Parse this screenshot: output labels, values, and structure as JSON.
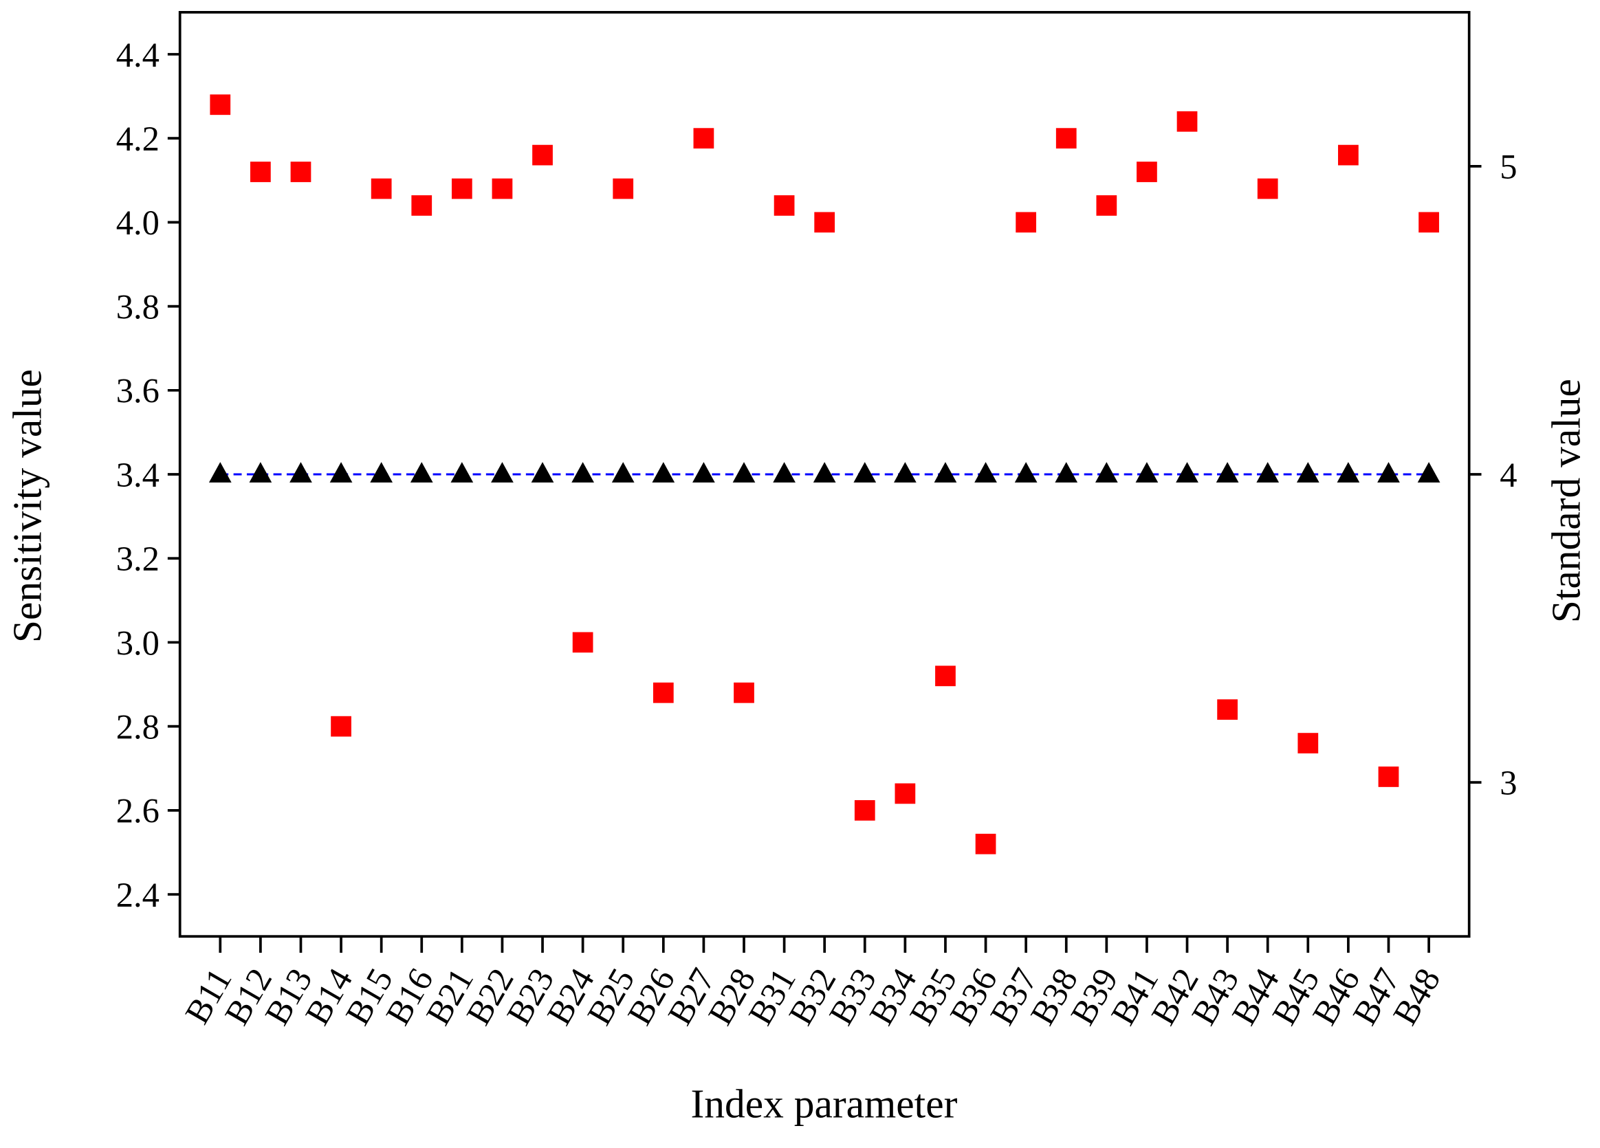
{
  "chart_data": {
    "type": "scatter",
    "x_label": "Index parameter",
    "y_label": "Sensitivity value",
    "y2_label": "Standard value",
    "categories": [
      "B11",
      "B12",
      "B13",
      "B14",
      "B15",
      "B16",
      "B21",
      "B22",
      "B23",
      "B24",
      "B25",
      "B26",
      "B27",
      "B28",
      "B31",
      "B32",
      "B33",
      "B34",
      "B35",
      "B36",
      "B37",
      "B38",
      "B39",
      "B41",
      "B42",
      "B43",
      "B44",
      "B45",
      "B46",
      "B47",
      "B48"
    ],
    "series": [
      {
        "color": "#ff0000",
        "marker": "square",
        "values": [
          4.28,
          4.12,
          4.12,
          2.8,
          4.08,
          4.04,
          4.08,
          4.08,
          4.16,
          3.0,
          4.08,
          2.88,
          4.2,
          2.88,
          4.04,
          4.0,
          2.6,
          2.64,
          2.92,
          2.52,
          4.0,
          4.2,
          4.04,
          4.12,
          4.24,
          2.84,
          4.08,
          2.76,
          4.16,
          2.68,
          4.0
        ]
      },
      {
        "color": "#000000",
        "marker": "triangle",
        "line_color": "#0000ff",
        "line_style": "dashed",
        "axis": "y2",
        "values": [
          4,
          4,
          4,
          4,
          4,
          4,
          4,
          4,
          4,
          4,
          4,
          4,
          4,
          4,
          4,
          4,
          4,
          4,
          4,
          4,
          4,
          4,
          4,
          4,
          4,
          4,
          4,
          4,
          4,
          4,
          4
        ]
      }
    ],
    "ylim": [
      2.3,
      4.5
    ],
    "yticks": [
      2.4,
      2.6,
      2.8,
      {
        "value": 3,
        "label": "3.0"
      },
      3.2,
      3.4,
      3.6,
      3.8,
      {
        "value": 4,
        "label": "4.0"
      },
      4.2,
      4.4
    ],
    "y2lim": [
      2.5,
      5.5
    ],
    "y2ticks": [
      3,
      4,
      5
    ],
    "grid": false
  }
}
